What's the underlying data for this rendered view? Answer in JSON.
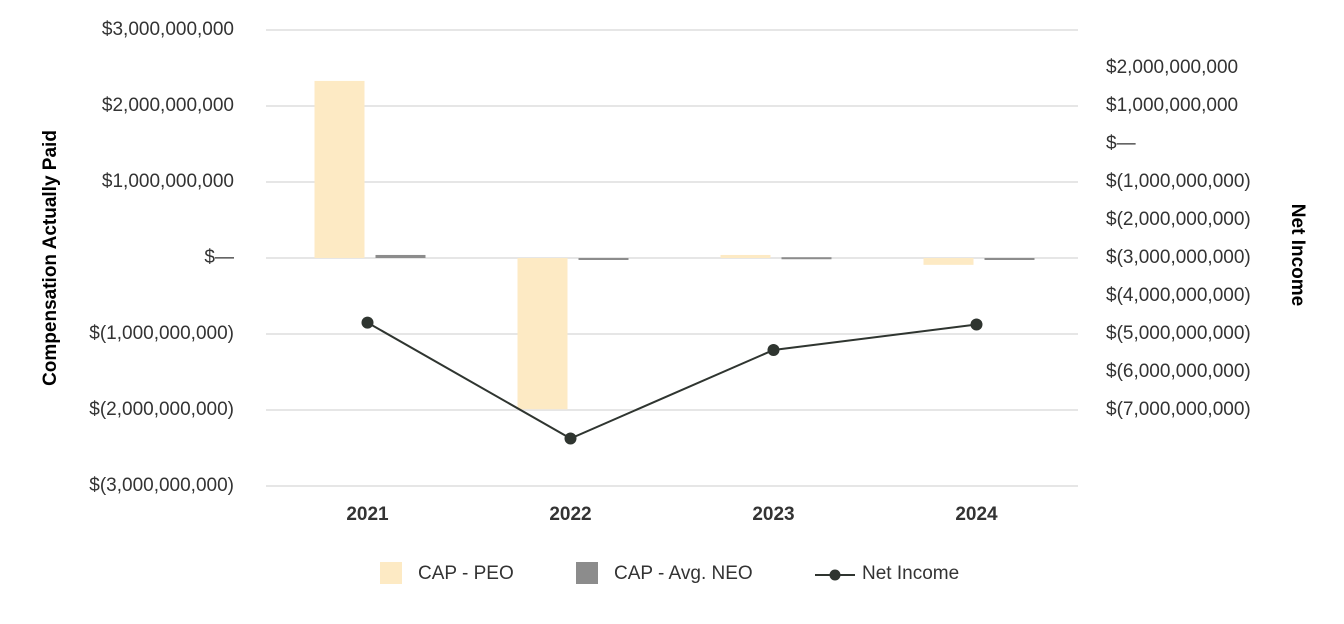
{
  "chart_data": {
    "type": "bar",
    "categories": [
      "2021",
      "2022",
      "2023",
      "2024"
    ],
    "series": [
      {
        "name": "CAP - PEO",
        "kind": "bar",
        "axis": "left",
        "color": "#fdeac4",
        "values": [
          2330000000,
          -1990000000,
          40000000,
          -90000000
        ]
      },
      {
        "name": "CAP - Avg. NEO",
        "kind": "bar",
        "axis": "left",
        "color": "#8c8c8c",
        "values": [
          40000000,
          -25000000,
          10000000,
          -15000000
        ]
      },
      {
        "name": "Net Income",
        "kind": "line",
        "axis": "right",
        "color": "#2f3530",
        "values": [
          -4700000000,
          -7750000000,
          -5420000000,
          -4750000000
        ]
      }
    ],
    "ylabel": "Compensation Actually Paid",
    "y2label": "Net Income",
    "ylim": [
      -3000000000,
      3000000000
    ],
    "y2lim": [
      -9000000000,
      3000000000
    ],
    "left_ticks": [
      {
        "value": 3000000000,
        "label": "$3,000,000,000"
      },
      {
        "value": 2000000000,
        "label": "$2,000,000,000"
      },
      {
        "value": 1000000000,
        "label": "$1,000,000,000"
      },
      {
        "value": 0,
        "label": "$—"
      },
      {
        "value": -1000000000,
        "label": "$(1,000,000,000)"
      },
      {
        "value": -2000000000,
        "label": "$(2,000,000,000)"
      },
      {
        "value": -3000000000,
        "label": "$(3,000,000,000)"
      }
    ],
    "right_ticks": [
      {
        "value": 2000000000,
        "label": "$2,000,000,000"
      },
      {
        "value": 1000000000,
        "label": "$1,000,000,000"
      },
      {
        "value": 0,
        "label": "$—"
      },
      {
        "value": -1000000000,
        "label": "$(1,000,000,000)"
      },
      {
        "value": -2000000000,
        "label": "$(2,000,000,000)"
      },
      {
        "value": -3000000000,
        "label": "$(3,000,000,000)"
      },
      {
        "value": -4000000000,
        "label": "$(4,000,000,000)"
      },
      {
        "value": -5000000000,
        "label": "$(5,000,000,000)"
      },
      {
        "value": -6000000000,
        "label": "$(6,000,000,000)"
      },
      {
        "value": -7000000000,
        "label": "$(7,000,000,000)"
      }
    ],
    "grid": true,
    "legend_position": "bottom"
  }
}
